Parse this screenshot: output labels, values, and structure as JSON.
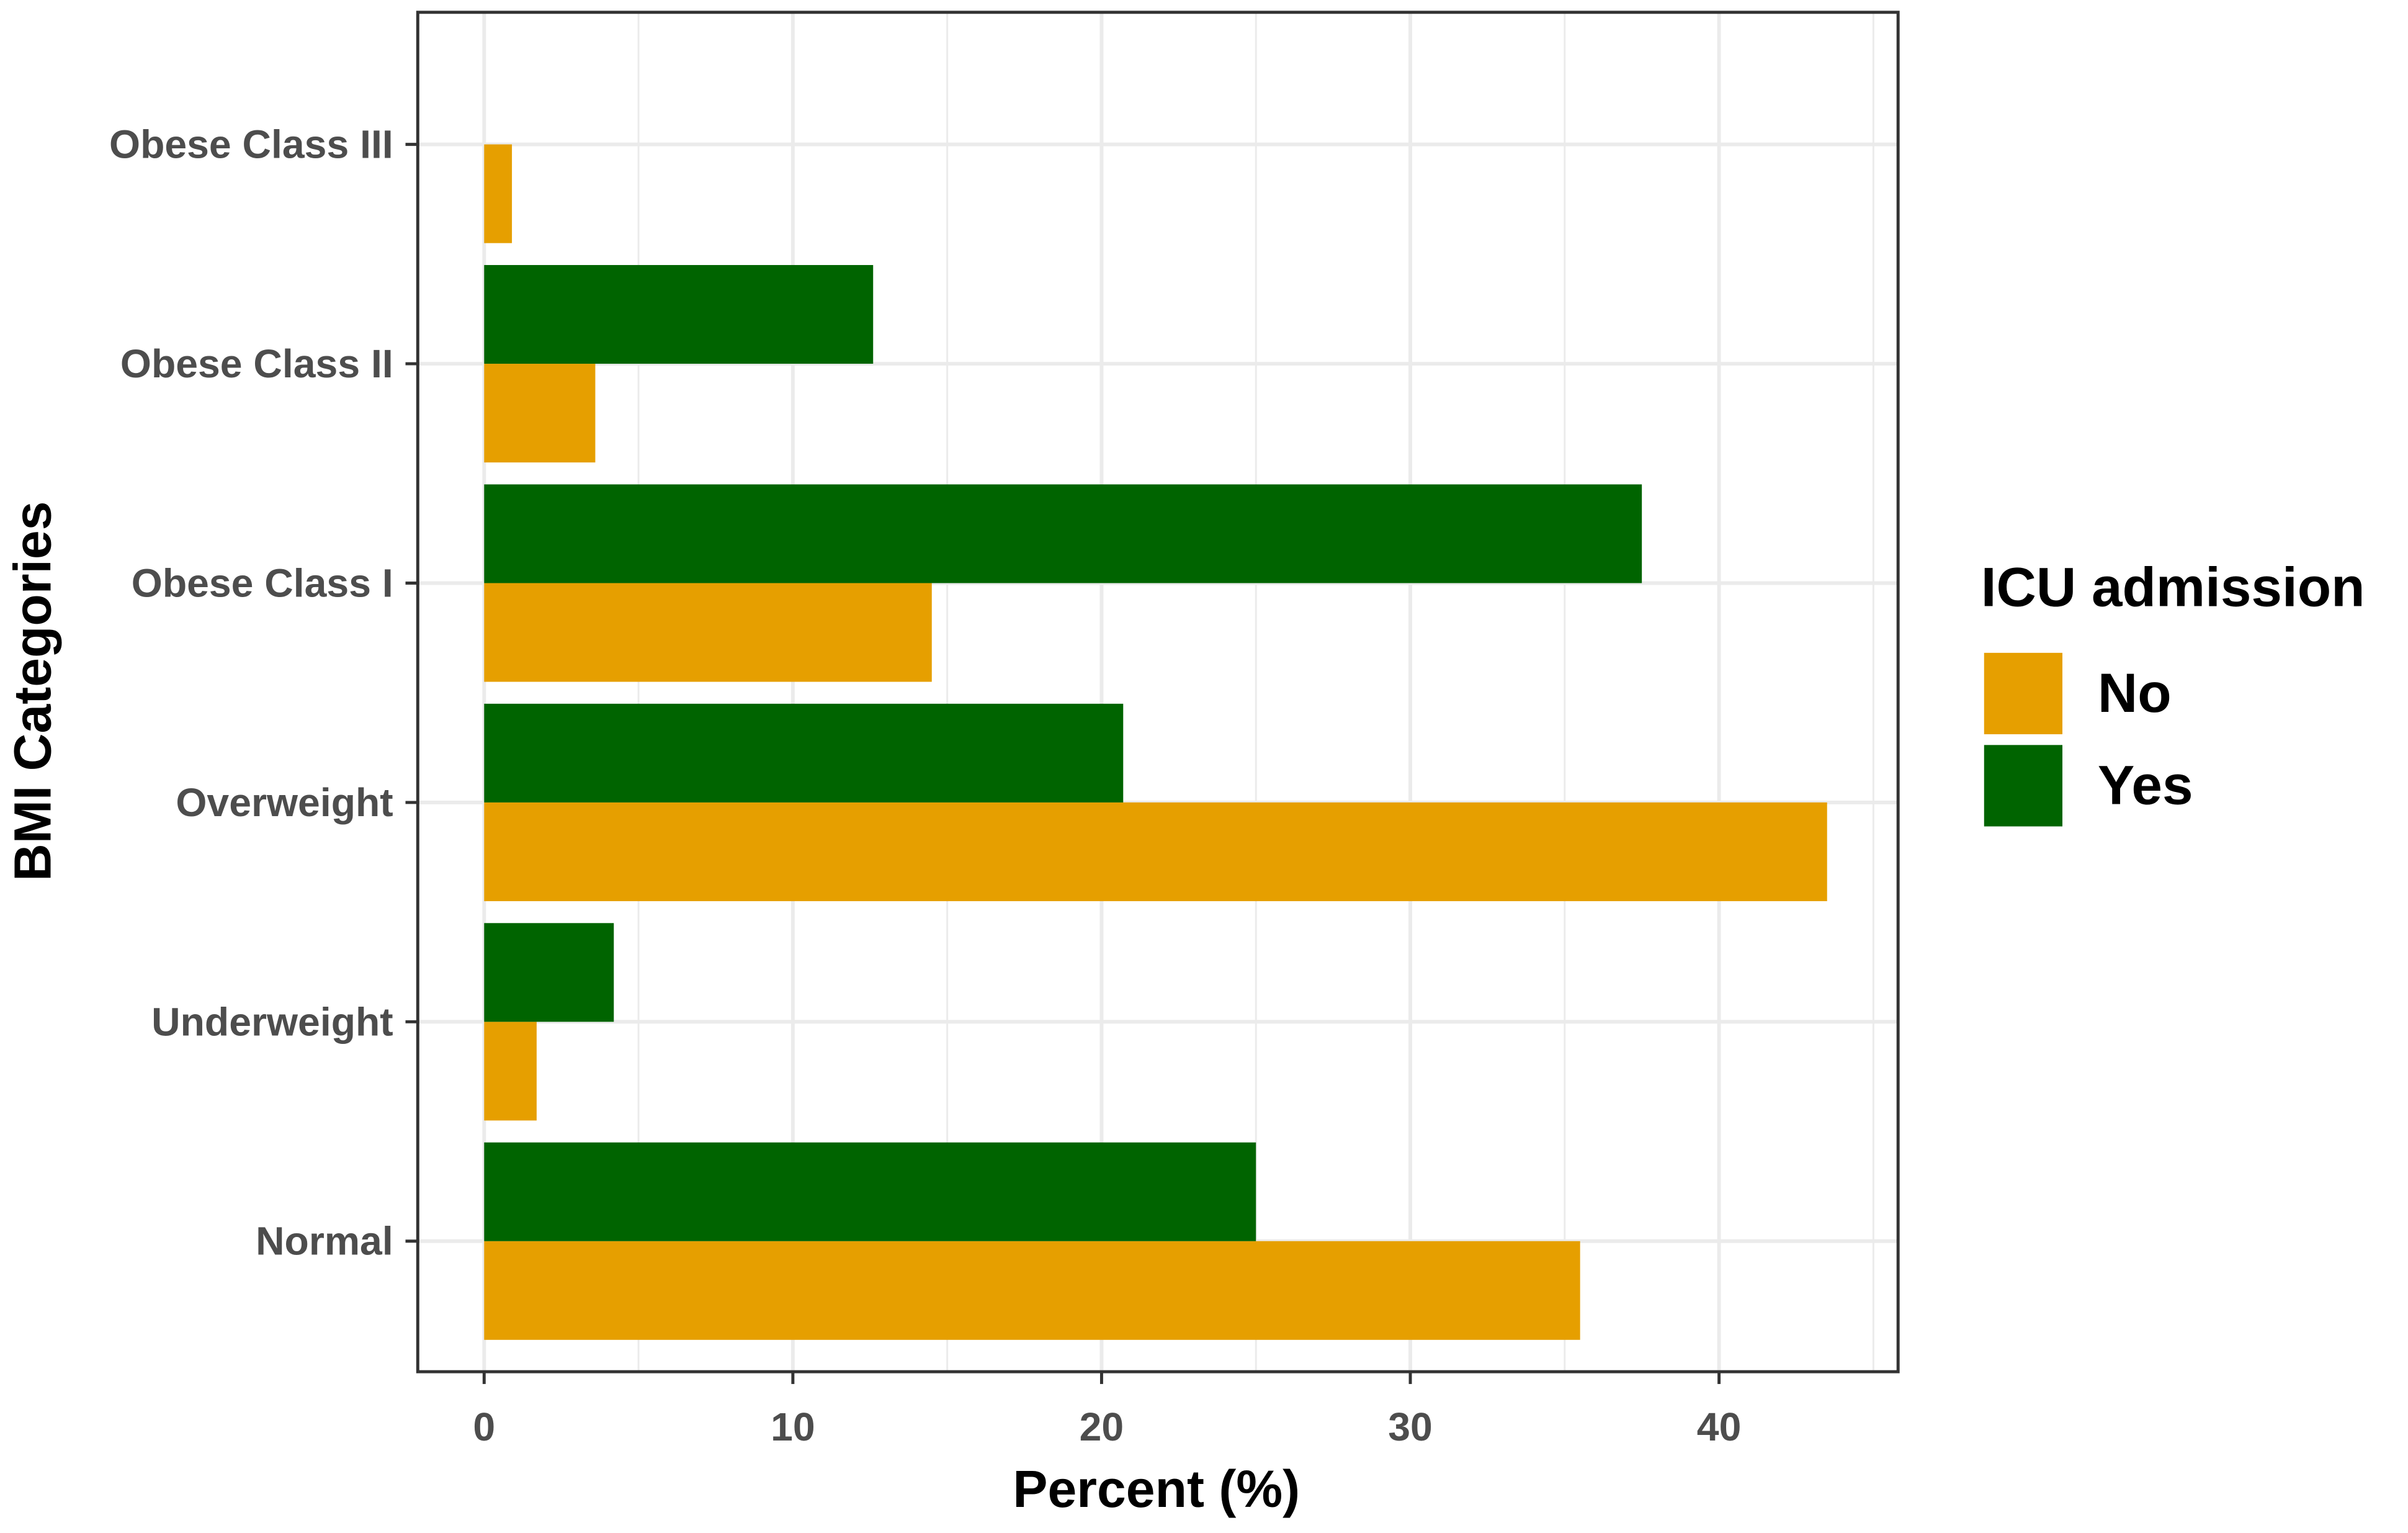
{
  "chart_data": {
    "type": "bar",
    "orientation": "horizontal",
    "x_label": "Percent (%)",
    "y_label": "BMI Categories",
    "categories": [
      "Normal",
      "Underweight",
      "Overweight",
      "Obese Class I",
      "Obese Class II",
      "Obese Class III"
    ],
    "series": [
      {
        "name": "No",
        "color": "#E69F00",
        "values": [
          35.5,
          1.7,
          43.5,
          14.5,
          3.6,
          0.9
        ]
      },
      {
        "name": "Yes",
        "color": "#006400",
        "values": [
          25.0,
          4.2,
          20.7,
          37.5,
          12.6,
          null
        ]
      }
    ],
    "legend_title": "ICU admission",
    "legend_position": "right",
    "xlim": [
      -2.15,
      45.8
    ],
    "xticks": [
      0,
      10,
      20,
      30,
      40
    ],
    "x_minor_grid": [
      5,
      15,
      25,
      35,
      45
    ],
    "grid": true
  }
}
